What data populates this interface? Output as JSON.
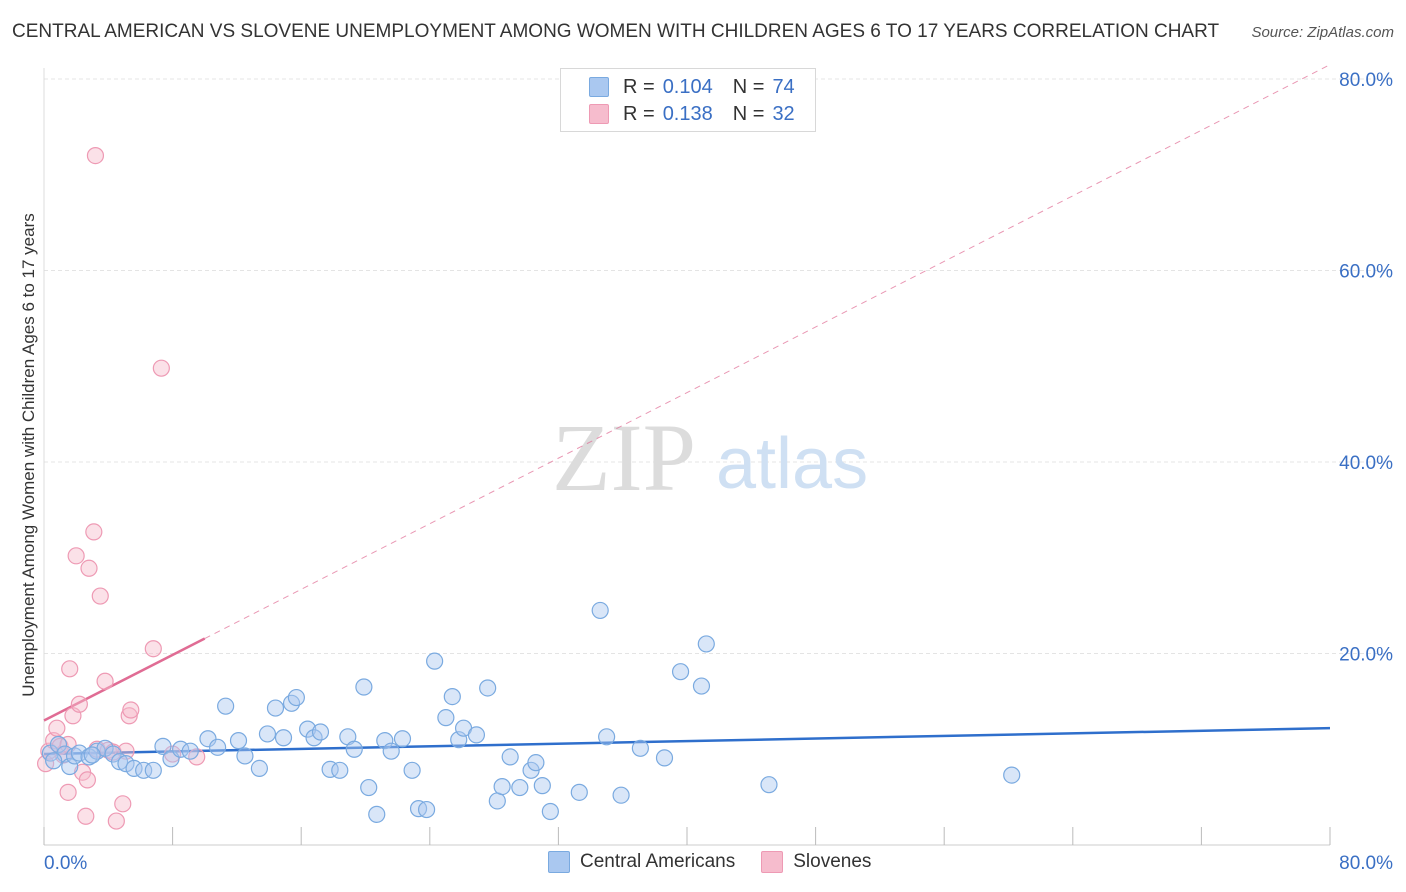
{
  "title": "CENTRAL AMERICAN VS SLOVENE UNEMPLOYMENT AMONG WOMEN WITH CHILDREN AGES 6 TO 17 YEARS CORRELATION CHART",
  "source": "Source: ZipAtlas.com",
  "watermark": {
    "zip": "ZIP",
    "atlas": "atlas"
  },
  "legend": {
    "rows": [
      {
        "r_label": "R =",
        "r_value": "0.104",
        "n_label": "N =",
        "n_value": "74"
      },
      {
        "r_label": "R =",
        "r_value": "0.138",
        "n_label": "N =",
        "n_value": "32"
      }
    ]
  },
  "bottom_legend": {
    "series1": "Central Americans",
    "series2": "Slovenes"
  },
  "colors": {
    "blue_fill": "#aac8f0",
    "blue_stroke": "#7aaae0",
    "blue_line": "#2f6fcc",
    "pink_fill": "#f6bccd",
    "pink_stroke": "#ee9ab4",
    "pink_line": "#e06c94",
    "axis_label": "#3a6fc4",
    "grid": "#e4e4e4"
  },
  "chart_data": {
    "type": "scatter",
    "title": "CENTRAL AMERICAN VS SLOVENE UNEMPLOYMENT AMONG WOMEN WITH CHILDREN AGES 6 TO 17 YEARS CORRELATION CHART",
    "xlabel": "",
    "ylabel": "Unemployment Among Women with Children Ages 6 to 17 years",
    "xlim": [
      0,
      80
    ],
    "ylim": [
      0,
      80
    ],
    "x_tick_labels": [
      "0.0%",
      "80.0%"
    ],
    "y_tick_labels": [
      "20.0%",
      "40.0%",
      "60.0%",
      "80.0%"
    ],
    "y_ticks": [
      20,
      40,
      60,
      80
    ],
    "series": [
      {
        "name": "Central Americans",
        "r": 0.104,
        "n": 74,
        "trend": {
          "x0": 0,
          "y0": 9.5,
          "x1": 80,
          "y1": 12.2,
          "style": "solid"
        },
        "points": [
          [
            0.4,
            9.6
          ],
          [
            0.9,
            10.5
          ],
          [
            1.3,
            9.5
          ],
          [
            1.6,
            8.2
          ],
          [
            1.9,
            9.3
          ],
          [
            2.2,
            9.6
          ],
          [
            2.8,
            9.2
          ],
          [
            3.3,
            9.8
          ],
          [
            3.8,
            10.1
          ],
          [
            4.3,
            9.5
          ],
          [
            4.7,
            8.7
          ],
          [
            5.1,
            8.5
          ],
          [
            5.6,
            8.0
          ],
          [
            6.2,
            7.8
          ],
          [
            6.8,
            7.8
          ],
          [
            7.4,
            10.3
          ],
          [
            7.9,
            9.0
          ],
          [
            8.5,
            10.0
          ],
          [
            9.1,
            9.8
          ],
          [
            10.2,
            11.1
          ],
          [
            10.8,
            10.2
          ],
          [
            11.3,
            14.5
          ],
          [
            12.1,
            10.9
          ],
          [
            12.5,
            9.3
          ],
          [
            13.4,
            8.0
          ],
          [
            13.9,
            11.6
          ],
          [
            14.4,
            14.3
          ],
          [
            14.9,
            11.2
          ],
          [
            15.4,
            14.8
          ],
          [
            15.7,
            15.4
          ],
          [
            16.4,
            12.1
          ],
          [
            16.8,
            11.2
          ],
          [
            17.2,
            11.8
          ],
          [
            17.8,
            7.9
          ],
          [
            18.4,
            7.8
          ],
          [
            18.9,
            11.3
          ],
          [
            19.3,
            10.0
          ],
          [
            19.9,
            16.5
          ],
          [
            20.2,
            6.0
          ],
          [
            20.7,
            3.2
          ],
          [
            21.2,
            10.9
          ],
          [
            21.6,
            9.8
          ],
          [
            22.3,
            11.1
          ],
          [
            22.9,
            7.8
          ],
          [
            23.3,
            3.8
          ],
          [
            23.8,
            3.7
          ],
          [
            24.3,
            19.2
          ],
          [
            25.0,
            13.3
          ],
          [
            25.4,
            15.5
          ],
          [
            25.8,
            11.0
          ],
          [
            26.1,
            12.2
          ],
          [
            26.9,
            11.5
          ],
          [
            27.6,
            16.4
          ],
          [
            28.2,
            4.6
          ],
          [
            28.5,
            6.1
          ],
          [
            29.0,
            9.2
          ],
          [
            29.6,
            6.0
          ],
          [
            30.3,
            7.8
          ],
          [
            30.6,
            8.6
          ],
          [
            31.0,
            6.2
          ],
          [
            31.5,
            3.5
          ],
          [
            33.3,
            5.5
          ],
          [
            34.6,
            24.5
          ],
          [
            35.0,
            11.3
          ],
          [
            35.9,
            5.2
          ],
          [
            37.1,
            10.1
          ],
          [
            38.6,
            9.1
          ],
          [
            39.6,
            18.1
          ],
          [
            40.9,
            16.6
          ],
          [
            41.2,
            21.0
          ],
          [
            45.1,
            6.3
          ],
          [
            60.2,
            7.3
          ],
          [
            0.6,
            8.8
          ],
          [
            3.0,
            9.4
          ]
        ]
      },
      {
        "name": "Slovenes",
        "r": 0.138,
        "n": 32,
        "trend": {
          "x0": 0,
          "y0": 13.0,
          "x1": 80,
          "y1": 81.5,
          "solid_until_x": 10,
          "style": "solid-then-dashed"
        },
        "points": [
          [
            0.1,
            8.5
          ],
          [
            0.3,
            9.8
          ],
          [
            0.6,
            10.9
          ],
          [
            0.8,
            12.2
          ],
          [
            1.0,
            10.3
          ],
          [
            1.2,
            9.4
          ],
          [
            1.5,
            10.5
          ],
          [
            1.5,
            5.5
          ],
          [
            1.6,
            18.4
          ],
          [
            1.8,
            13.5
          ],
          [
            2.0,
            30.2
          ],
          [
            2.2,
            14.7
          ],
          [
            2.4,
            7.6
          ],
          [
            2.6,
            3.0
          ],
          [
            2.7,
            6.8
          ],
          [
            2.8,
            28.9
          ],
          [
            3.1,
            32.7
          ],
          [
            3.2,
            72.0
          ],
          [
            3.3,
            10.0
          ],
          [
            3.5,
            26.0
          ],
          [
            3.8,
            17.1
          ],
          [
            4.0,
            9.9
          ],
          [
            4.3,
            9.7
          ],
          [
            4.5,
            2.5
          ],
          [
            4.9,
            4.3
          ],
          [
            5.1,
            9.8
          ],
          [
            5.3,
            13.5
          ],
          [
            5.4,
            14.1
          ],
          [
            6.8,
            20.5
          ],
          [
            7.3,
            49.8
          ],
          [
            8.0,
            9.5
          ],
          [
            9.5,
            9.2
          ]
        ]
      }
    ]
  }
}
